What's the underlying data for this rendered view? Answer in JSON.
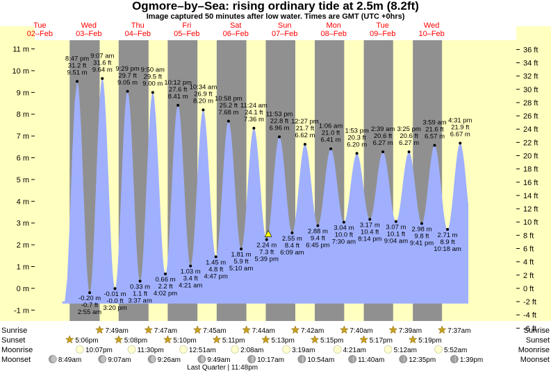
{
  "title": "Ogmore–by–Sea: rising  ordinary tide at 2.5m (8.2ft)",
  "subtitle": "Image captured 50 minutes after low water. Times are GMT (UTC +0hrs)",
  "chart_data": {
    "type": "area",
    "title": "Ogmore–by–Sea: rising  ordinary tide at 2.5m (8.2ft)",
    "subtitle": "Image captured 50 minutes after low water. Times are GMT (UTC +0hrs)",
    "days": [
      {
        "dow": "Tue",
        "date": "02–Feb"
      },
      {
        "dow": "Wed",
        "date": "03–Feb"
      },
      {
        "dow": "Thu",
        "date": "04–Feb"
      },
      {
        "dow": "Fri",
        "date": "05–Feb"
      },
      {
        "dow": "Sat",
        "date": "06–Feb"
      },
      {
        "dow": "Sun",
        "date": "07–Feb"
      },
      {
        "dow": "Mon",
        "date": "08–Feb"
      },
      {
        "dow": "Tue",
        "date": "09–Feb"
      },
      {
        "dow": "Wed",
        "date": "10–Feb"
      }
    ],
    "y_left": {
      "unit": "m",
      "range": [
        -1.5,
        11.4
      ],
      "ticks": [
        -1,
        0,
        1,
        2,
        3,
        4,
        5,
        6,
        7,
        8,
        9,
        10,
        11
      ]
    },
    "y_right": {
      "unit": "ft",
      "range": [
        -6,
        37
      ],
      "ticks": [
        -6,
        -4,
        -2,
        0,
        2,
        4,
        6,
        8,
        10,
        12,
        14,
        16,
        18,
        20,
        22,
        24,
        26,
        28,
        30,
        32,
        34,
        36
      ]
    },
    "x_range_hours": [
      0,
      236
    ],
    "tides": [
      {
        "t": 20.78,
        "m": 9.51,
        "time": "8:47 pm",
        "ft": "31.2 ft",
        "mlabel": "9.51 m",
        "type": "high"
      },
      {
        "t": 26.92,
        "m": -0.2,
        "time": "2:55 am",
        "ft": "-0.7 ft",
        "mlabel": "-0.20 m",
        "type": "low"
      },
      {
        "t": 33.12,
        "m": 9.64,
        "time": "9:07 am",
        "ft": "31.6 ft",
        "mlabel": "9.64 m",
        "type": "high"
      },
      {
        "t": 39.33,
        "m": -0.01,
        "time": "3:20 pm",
        "ft": "-0.0 ft",
        "mlabel": "-0.01 m",
        "type": "low"
      },
      {
        "t": 45.48,
        "m": 9.05,
        "time": "9:29 pm",
        "ft": "29.7 ft",
        "mlabel": "9.05 m",
        "type": "high"
      },
      {
        "t": 51.62,
        "m": 0.33,
        "time": "3:37 am",
        "ft": "1.1 ft",
        "mlabel": "0.33 m",
        "type": "low"
      },
      {
        "t": 57.83,
        "m": 9.0,
        "time": "9:50 am",
        "ft": "29.5 ft",
        "mlabel": "9.00 m",
        "type": "high"
      },
      {
        "t": 64.03,
        "m": 0.66,
        "time": "4:02 pm",
        "ft": "2.2 ft",
        "mlabel": "0.66 m",
        "type": "low"
      },
      {
        "t": 70.2,
        "m": 8.41,
        "time": "10:12 pm",
        "ft": "27.6 ft",
        "mlabel": "8.41 m",
        "type": "high"
      },
      {
        "t": 76.35,
        "m": 1.03,
        "time": "4:21 am",
        "ft": "3.4 ft",
        "mlabel": "1.03 m",
        "type": "low"
      },
      {
        "t": 82.57,
        "m": 8.2,
        "time": "10:34 am",
        "ft": "26.9 ft",
        "mlabel": "8.20 m",
        "type": "high"
      },
      {
        "t": 88.78,
        "m": 1.45,
        "time": "4:47 pm",
        "ft": "4.8 ft",
        "mlabel": "1.45 m",
        "type": "low"
      },
      {
        "t": 94.97,
        "m": 7.68,
        "time": "10:58 pm",
        "ft": "25.2 ft",
        "mlabel": "7.68 m",
        "type": "high"
      },
      {
        "t": 101.17,
        "m": 1.81,
        "time": "5:10 am",
        "ft": "5.9 ft",
        "mlabel": "1.81 m",
        "type": "low"
      },
      {
        "t": 107.4,
        "m": 7.36,
        "time": "11:24 am",
        "ft": "24.1 ft",
        "mlabel": "7.36 m",
        "type": "high"
      },
      {
        "t": 113.65,
        "m": 2.24,
        "time": "5:39 pm",
        "ft": "7.3 ft",
        "mlabel": "2.24 m",
        "type": "low"
      },
      {
        "t": 119.88,
        "m": 6.96,
        "time": "11:53 pm",
        "ft": "22.8 ft",
        "mlabel": "6.96 m",
        "type": "high"
      },
      {
        "t": 126.15,
        "m": 2.55,
        "time": "6:09 am",
        "ft": "8.4 ft",
        "mlabel": "2.55 m",
        "type": "low"
      },
      {
        "t": 132.45,
        "m": 6.62,
        "time": "12:27 pm",
        "ft": "21.7 ft",
        "mlabel": "6.62 m",
        "type": "high"
      },
      {
        "t": 138.75,
        "m": 2.88,
        "time": "6:45 pm",
        "ft": "9.4 ft",
        "mlabel": "2.88 m",
        "type": "low"
      },
      {
        "t": 145.1,
        "m": 6.41,
        "time": "1:06 am",
        "ft": "21.0 ft",
        "mlabel": "6.41 m",
        "type": "high"
      },
      {
        "t": 151.5,
        "m": 3.04,
        "time": "7:30 am",
        "ft": "10.0 ft",
        "mlabel": "3.04 m",
        "type": "low"
      },
      {
        "t": 157.88,
        "m": 6.2,
        "time": "1:53 pm",
        "ft": "20.3 ft",
        "mlabel": "6.20 m",
        "type": "high"
      },
      {
        "t": 164.23,
        "m": 3.17,
        "time": "8:14 pm",
        "ft": "10.4 ft",
        "mlabel": "3.17 m",
        "type": "low"
      },
      {
        "t": 170.65,
        "m": 6.27,
        "time": "2:39 am",
        "ft": "20.6 ft",
        "mlabel": "6.27 m",
        "type": "high"
      },
      {
        "t": 177.07,
        "m": 3.07,
        "time": "9:04 am",
        "ft": "10.1 ft",
        "mlabel": "3.07 m",
        "type": "low"
      },
      {
        "t": 183.42,
        "m": 6.27,
        "time": "3:25 pm",
        "ft": "20.6 ft",
        "mlabel": "6.27 m",
        "type": "high"
      },
      {
        "t": 189.68,
        "m": 2.98,
        "time": "9:41 pm",
        "ft": "9.8 ft",
        "mlabel": "2.98 m",
        "type": "low"
      },
      {
        "t": 195.98,
        "m": 6.57,
        "time": "3:59 am",
        "ft": "21.6 ft",
        "mlabel": "6.57 m",
        "type": "high"
      },
      {
        "t": 202.3,
        "m": 2.71,
        "time": "10:18 am",
        "ft": "8.9 ft",
        "mlabel": "2.71 m",
        "type": "low"
      },
      {
        "t": 208.52,
        "m": 6.67,
        "time": "4:31 pm",
        "ft": "21.9 ft",
        "mlabel": "6.67 m",
        "type": "high"
      }
    ],
    "current_marker": {
      "t": 114.48,
      "m": 2.5,
      "label": "rising  ordinary tide at 2.5m (8.2ft)"
    },
    "sunrise": [
      {
        "t": 31.82,
        "label": "7:49am"
      },
      {
        "t": 55.78,
        "label": "7:47am"
      },
      {
        "t": 79.75,
        "label": "7:45am"
      },
      {
        "t": 103.73,
        "label": "7:44am"
      },
      {
        "t": 127.7,
        "label": "7:42am"
      },
      {
        "t": 151.67,
        "label": "7:40am"
      },
      {
        "t": 175.65,
        "label": "7:39am"
      },
      {
        "t": 199.62,
        "label": "7:37am"
      }
    ],
    "sunset": [
      {
        "t": 17.1,
        "label": "5:06pm"
      },
      {
        "t": 41.13,
        "label": "5:08pm"
      },
      {
        "t": 65.17,
        "label": "5:10pm"
      },
      {
        "t": 89.18,
        "label": "5:11pm"
      },
      {
        "t": 113.22,
        "label": "5:13pm"
      },
      {
        "t": 137.25,
        "label": "5:15pm"
      },
      {
        "t": 161.28,
        "label": "5:17pm"
      },
      {
        "t": 185.32,
        "label": "5:19pm"
      }
    ],
    "moonrise": [
      {
        "t": 22.12,
        "label": "10:07pm"
      },
      {
        "t": 47.5,
        "label": "11:30pm"
      },
      {
        "t": 72.85,
        "label": "12:51am"
      },
      {
        "t": 98.13,
        "label": "2:08am"
      },
      {
        "t": 123.32,
        "label": "3:19am"
      },
      {
        "t": 148.35,
        "label": "4:21am"
      },
      {
        "t": 173.2,
        "label": "5:12am"
      },
      {
        "t": 197.87,
        "label": "5:52am"
      }
    ],
    "moonset": [
      {
        "t": 8.82,
        "label": "8:49am",
        "phase": 0.72
      },
      {
        "t": 33.12,
        "label": "9:07am",
        "phase": 0.67
      },
      {
        "t": 57.43,
        "label": "9:26am",
        "phase": 0.58
      },
      {
        "t": 81.82,
        "label": "9:49am",
        "phase": 0.48
      },
      {
        "t": 106.28,
        "label": "10:17am",
        "phase": 0.38
      },
      {
        "t": 130.9,
        "label": "10:54am",
        "phase": 0.28
      },
      {
        "t": 155.67,
        "label": "11:40am",
        "phase": 0.18
      },
      {
        "t": 180.58,
        "label": "12:35pm",
        "phase": 0.1
      },
      {
        "t": 205.65,
        "label": "1:39pm",
        "phase": 0.04
      }
    ],
    "moon_phase_note": "Last Quarter | 11:48pm",
    "moon_phase_t": 92.0,
    "row_labels": {
      "sunrise": "Sunrise",
      "sunset": "Sunset",
      "moonrise": "Moonrise",
      "moonset": "Moonset"
    },
    "colors": {
      "day": "#ffffc0",
      "night": "#909090",
      "water": "#a0b0ff",
      "margin": "#ffffc0",
      "day_label": "#ff0000",
      "sun_icon": "#c8a020",
      "moon_icon": "#ffffd0",
      "moonset_icon": "#a0a0a0",
      "marker": "#ffff00"
    }
  }
}
